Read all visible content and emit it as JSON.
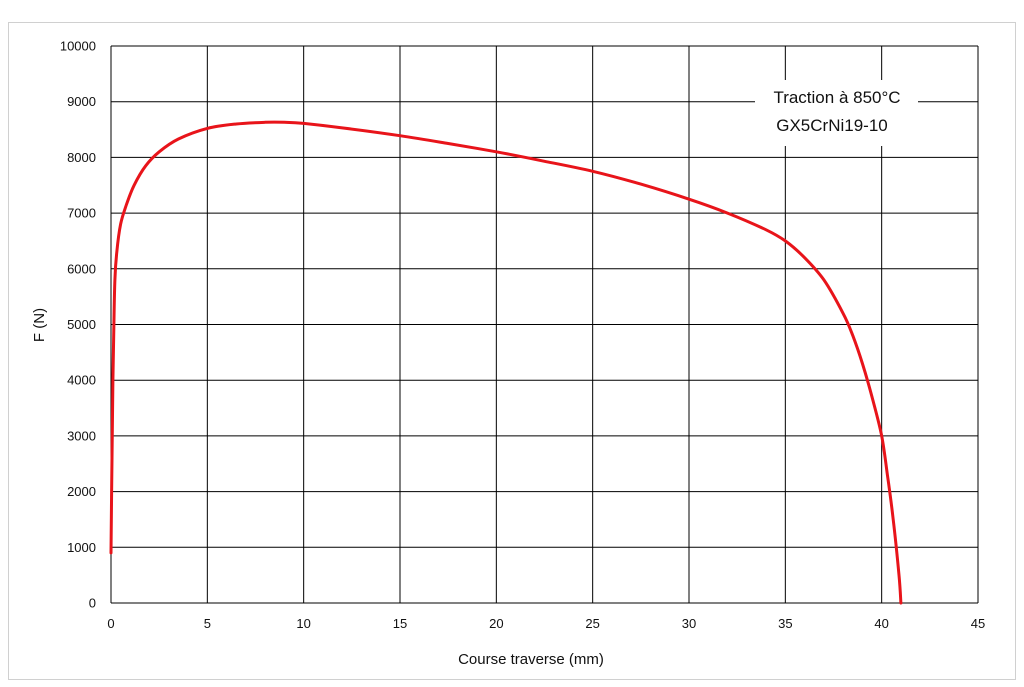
{
  "chart_data": {
    "type": "line",
    "xlabel": "Course  traverse (mm)",
    "ylabel": "F (N)",
    "xlim": [
      0,
      45
    ],
    "ylim": [
      0,
      10000
    ],
    "x_ticks": [
      0,
      5,
      10,
      15,
      20,
      25,
      30,
      35,
      40,
      45
    ],
    "y_ticks": [
      0,
      1000,
      2000,
      3000,
      4000,
      5000,
      6000,
      7000,
      8000,
      9000,
      10000
    ],
    "grid": true,
    "line_color": "#e8141a",
    "annotation": [
      "Traction à 850°C",
      "GX5CrNi19-10"
    ],
    "series": [
      {
        "x": [
          0,
          0.05,
          0.1,
          0.15,
          0.2,
          0.3,
          0.5,
          0.8,
          1.2,
          1.8,
          2.5,
          3.5,
          5,
          6.5,
          8,
          9,
          10,
          12,
          15,
          17.5,
          20,
          22.5,
          25,
          27.5,
          30,
          32,
          34,
          35,
          36,
          37,
          38,
          38.5,
          39,
          39.5,
          40,
          40.3,
          40.6,
          40.9,
          41
        ],
        "y": [
          900,
          2600,
          4000,
          5000,
          5800,
          6300,
          6800,
          7150,
          7500,
          7850,
          8100,
          8330,
          8520,
          8600,
          8630,
          8630,
          8610,
          8530,
          8390,
          8250,
          8100,
          7930,
          7750,
          7520,
          7250,
          7000,
          6700,
          6500,
          6200,
          5800,
          5200,
          4800,
          4300,
          3700,
          3000,
          2300,
          1500,
          500,
          0
        ]
      }
    ]
  }
}
